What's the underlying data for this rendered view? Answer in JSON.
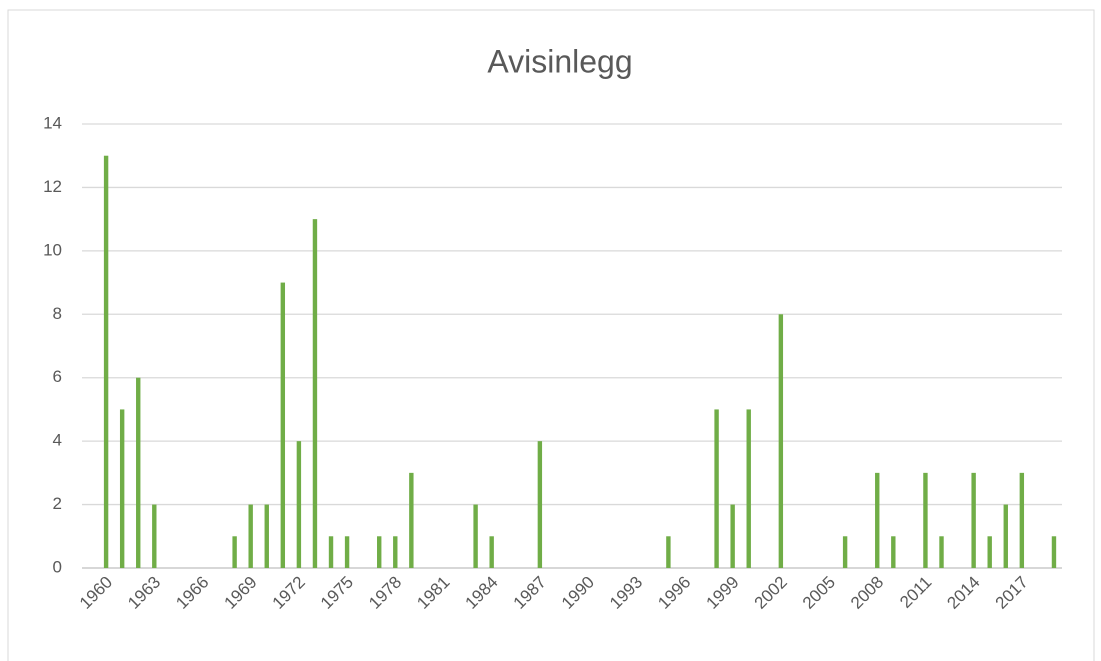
{
  "chart_data": {
    "type": "bar",
    "title": "Avisinlegg",
    "categories": [
      null,
      "1960",
      null,
      null,
      "1963",
      null,
      null,
      "1966",
      null,
      null,
      "1969",
      null,
      null,
      "1972",
      null,
      null,
      "1975",
      null,
      null,
      "1978",
      null,
      null,
      "1981",
      null,
      null,
      "1984",
      null,
      null,
      "1987",
      null,
      null,
      "1990",
      null,
      null,
      "1993",
      null,
      null,
      "1996",
      null,
      null,
      "1999",
      null,
      null,
      "2002",
      null,
      null,
      "2005",
      null,
      null,
      "2008",
      null,
      null,
      "2011",
      null,
      null,
      "2014",
      null,
      null,
      "2017",
      null,
      null
    ],
    "values": [
      0,
      13,
      5,
      6,
      2,
      0,
      0,
      0,
      0,
      1,
      2,
      2,
      9,
      4,
      11,
      1,
      1,
      0,
      1,
      1,
      3,
      0,
      0,
      0,
      2,
      1,
      0,
      0,
      4,
      0,
      0,
      0,
      0,
      0,
      0,
      0,
      1,
      0,
      0,
      5,
      2,
      5,
      0,
      8,
      0,
      0,
      0,
      1,
      0,
      3,
      1,
      0,
      3,
      1,
      0,
      3,
      1,
      2,
      3,
      0,
      1
    ],
    "color": "#70ad47",
    "ylim": [
      0,
      14
    ],
    "yticks": [
      0,
      2,
      4,
      6,
      8,
      10,
      12,
      14
    ],
    "grid": true
  }
}
